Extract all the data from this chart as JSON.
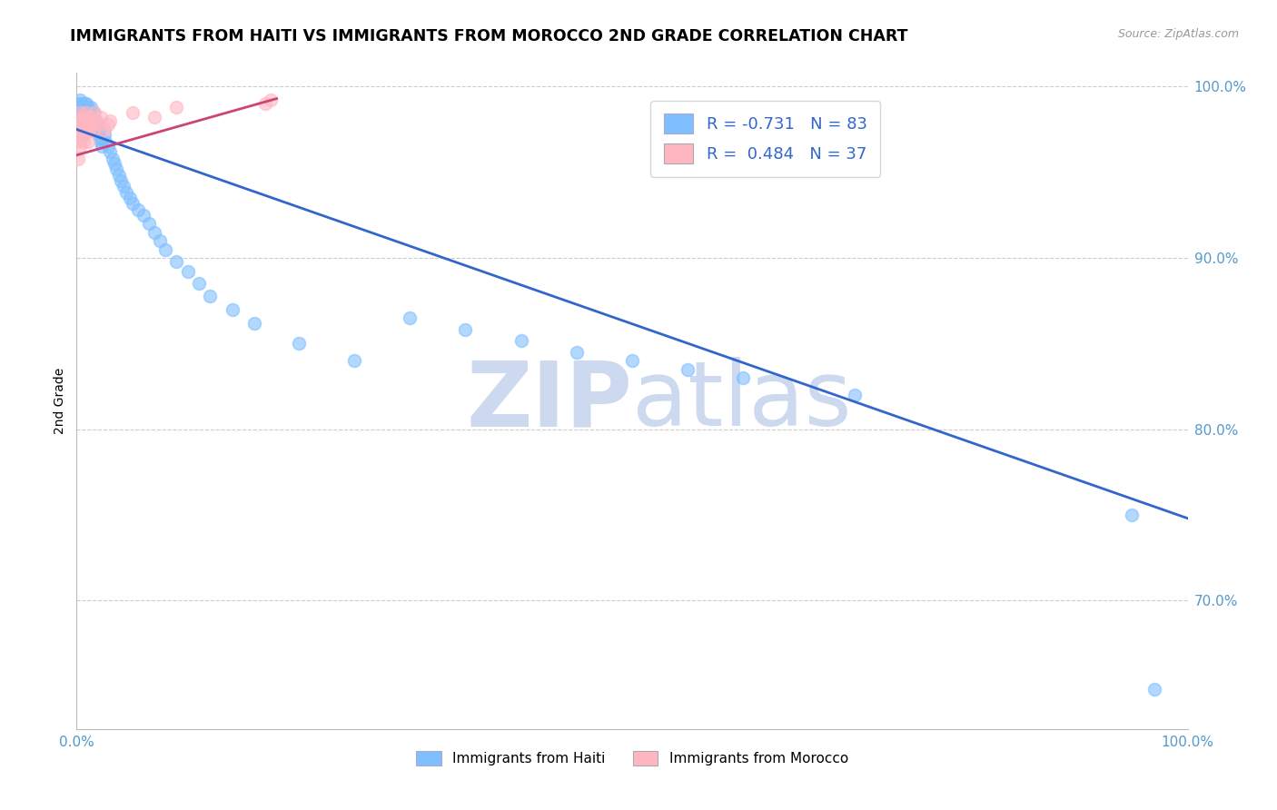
{
  "title": "IMMIGRANTS FROM HAITI VS IMMIGRANTS FROM MOROCCO 2ND GRADE CORRELATION CHART",
  "source": "Source: ZipAtlas.com",
  "ylabel": "2nd Grade",
  "legend_haiti_r": "R = -0.731",
  "legend_haiti_n": "N = 83",
  "legend_morocco_r": "R =  0.484",
  "legend_morocco_n": "N = 37",
  "haiti_color": "#7fbfff",
  "morocco_color": "#ffb6c1",
  "haiti_line_color": "#3366cc",
  "morocco_line_color": "#cc4477",
  "background_color": "#ffffff",
  "watermark_color": "#ccd9ee",
  "haiti_scatter_x": [
    0.001,
    0.001,
    0.002,
    0.002,
    0.002,
    0.003,
    0.003,
    0.003,
    0.003,
    0.004,
    0.004,
    0.004,
    0.005,
    0.005,
    0.005,
    0.005,
    0.006,
    0.006,
    0.006,
    0.007,
    0.007,
    0.007,
    0.008,
    0.008,
    0.009,
    0.009,
    0.009,
    0.01,
    0.01,
    0.011,
    0.011,
    0.012,
    0.012,
    0.013,
    0.013,
    0.014,
    0.015,
    0.015,
    0.016,
    0.017,
    0.018,
    0.019,
    0.02,
    0.021,
    0.022,
    0.023,
    0.025,
    0.026,
    0.028,
    0.03,
    0.032,
    0.034,
    0.036,
    0.038,
    0.04,
    0.042,
    0.045,
    0.048,
    0.05,
    0.055,
    0.06,
    0.065,
    0.07,
    0.075,
    0.08,
    0.09,
    0.1,
    0.11,
    0.12,
    0.14,
    0.16,
    0.2,
    0.25,
    0.3,
    0.35,
    0.4,
    0.45,
    0.5,
    0.55,
    0.6,
    0.7,
    0.95,
    0.97
  ],
  "haiti_scatter_y": [
    0.99,
    0.985,
    0.988,
    0.982,
    0.975,
    0.992,
    0.985,
    0.978,
    0.972,
    0.988,
    0.98,
    0.975,
    0.99,
    0.985,
    0.978,
    0.972,
    0.988,
    0.982,
    0.975,
    0.99,
    0.985,
    0.978,
    0.988,
    0.982,
    0.99,
    0.985,
    0.975,
    0.988,
    0.98,
    0.985,
    0.978,
    0.982,
    0.975,
    0.988,
    0.98,
    0.975,
    0.985,
    0.978,
    0.98,
    0.975,
    0.978,
    0.972,
    0.975,
    0.97,
    0.968,
    0.965,
    0.972,
    0.968,
    0.965,
    0.962,
    0.958,
    0.955,
    0.952,
    0.948,
    0.945,
    0.942,
    0.938,
    0.935,
    0.932,
    0.928,
    0.925,
    0.92,
    0.915,
    0.91,
    0.905,
    0.898,
    0.892,
    0.885,
    0.878,
    0.87,
    0.862,
    0.85,
    0.84,
    0.865,
    0.858,
    0.852,
    0.845,
    0.84,
    0.835,
    0.83,
    0.82,
    0.75,
    0.648
  ],
  "morocco_scatter_x": [
    0.001,
    0.001,
    0.002,
    0.002,
    0.003,
    0.003,
    0.003,
    0.004,
    0.004,
    0.005,
    0.005,
    0.006,
    0.006,
    0.007,
    0.007,
    0.008,
    0.008,
    0.009,
    0.01,
    0.01,
    0.011,
    0.012,
    0.013,
    0.014,
    0.015,
    0.016,
    0.018,
    0.02,
    0.022,
    0.025,
    0.028,
    0.03,
    0.05,
    0.07,
    0.09,
    0.17,
    0.175
  ],
  "morocco_scatter_y": [
    0.972,
    0.958,
    0.968,
    0.978,
    0.975,
    0.965,
    0.985,
    0.97,
    0.98,
    0.975,
    0.982,
    0.968,
    0.978,
    0.972,
    0.98,
    0.975,
    0.985,
    0.978,
    0.982,
    0.968,
    0.975,
    0.98,
    0.978,
    0.982,
    0.975,
    0.985,
    0.98,
    0.978,
    0.982,
    0.975,
    0.978,
    0.98,
    0.985,
    0.982,
    0.988,
    0.99,
    0.992
  ],
  "haiti_line_x": [
    0.0,
    1.0
  ],
  "haiti_line_y": [
    0.975,
    0.748
  ],
  "morocco_line_x": [
    0.0,
    0.18
  ],
  "morocco_line_y": [
    0.96,
    0.993
  ],
  "xlim": [
    0.0,
    1.0
  ],
  "ylim": [
    0.625,
    1.008
  ],
  "ytick_vals": [
    1.0,
    0.9,
    0.8,
    0.7
  ],
  "ytick_labels": [
    "100.0%",
    "90.0%",
    "80.0%",
    "70.0%"
  ],
  "xtick_vals": [
    0.0,
    1.0
  ],
  "xtick_labels": [
    "0.0%",
    "100.0%"
  ]
}
